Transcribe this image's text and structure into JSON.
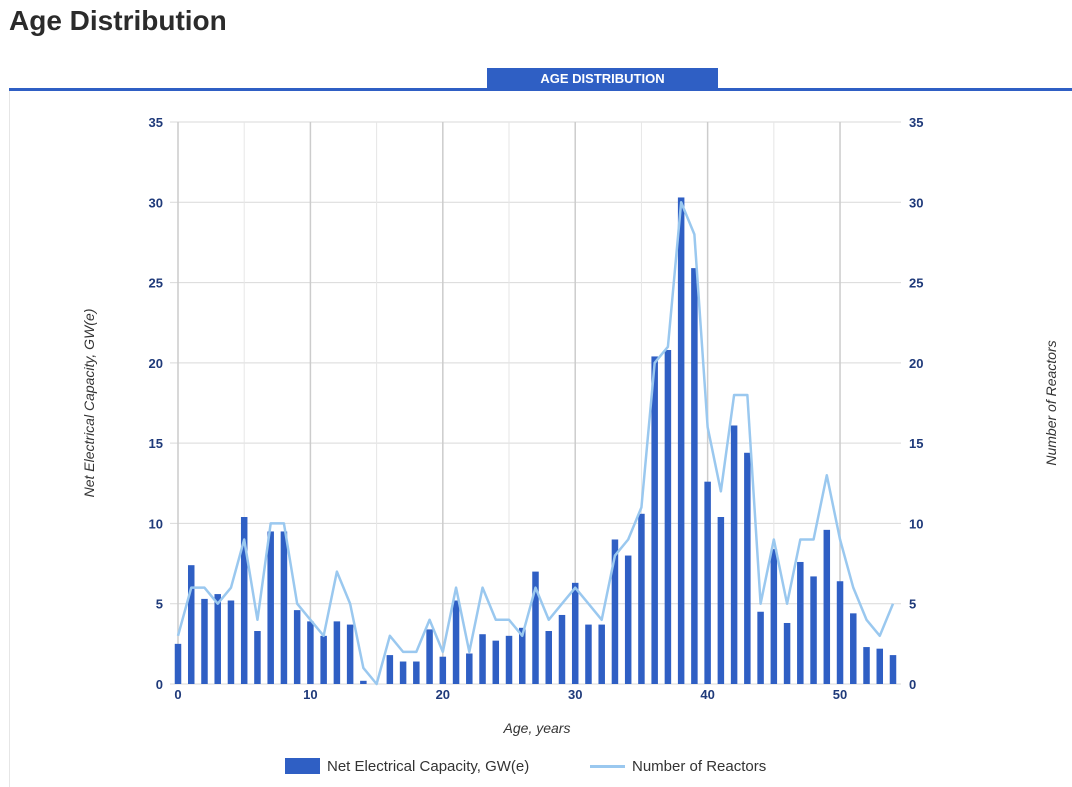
{
  "page": {
    "title": "Age Distribution",
    "tab_label": "AGE DISTRIBUTION"
  },
  "colors": {
    "bar": "#2f5fc4",
    "line": "#9ac8ef",
    "grid": "#d9d9d9",
    "tick_text": "#1f3a7a",
    "accent": "#2f5fc4"
  },
  "chart_data": {
    "type": "bar",
    "title": "",
    "xlabel": "Age, years",
    "ylabel_left": "Net Electrical Capacity, GW(e)",
    "ylabel_right": "Number of Reactors",
    "xlim": [
      0,
      54
    ],
    "ylim": [
      0,
      35
    ],
    "y_ticks": [
      0,
      5,
      10,
      15,
      20,
      25,
      30,
      35
    ],
    "x_ticks": [
      0,
      10,
      20,
      30,
      40,
      50
    ],
    "grid": true,
    "legend_position": "bottom",
    "series": [
      {
        "name": "Net Electrical Capacity, GW(e)",
        "kind": "bar",
        "axis": "left",
        "x": [
          0,
          1,
          2,
          3,
          4,
          5,
          6,
          7,
          8,
          9,
          10,
          11,
          12,
          13,
          14,
          15,
          16,
          17,
          18,
          19,
          20,
          21,
          22,
          23,
          24,
          25,
          26,
          27,
          28,
          29,
          30,
          31,
          32,
          33,
          34,
          35,
          36,
          37,
          38,
          39,
          40,
          41,
          42,
          43,
          44,
          45,
          46,
          47,
          48,
          49,
          50,
          51,
          52,
          53,
          54
        ],
        "values": [
          2.5,
          7.4,
          5.3,
          5.6,
          5.2,
          10.4,
          3.3,
          9.5,
          9.5,
          4.6,
          3.9,
          3.0,
          3.9,
          3.7,
          0.2,
          0,
          1.8,
          1.4,
          1.4,
          3.4,
          1.7,
          5.2,
          1.9,
          3.1,
          2.7,
          3.0,
          3.5,
          7.0,
          3.3,
          4.3,
          6.3,
          3.7,
          3.7,
          9.0,
          8.0,
          10.6,
          20.4,
          20.8,
          30.3,
          25.9,
          12.6,
          10.4,
          16.1,
          14.4,
          4.5,
          8.4,
          3.8,
          7.6,
          6.7,
          9.6,
          6.4,
          4.4,
          2.3,
          2.2,
          1.8
        ]
      },
      {
        "name": "Number of Reactors",
        "kind": "line",
        "axis": "right",
        "x": [
          0,
          1,
          2,
          3,
          4,
          5,
          6,
          7,
          8,
          9,
          10,
          11,
          12,
          13,
          14,
          15,
          16,
          17,
          18,
          19,
          20,
          21,
          22,
          23,
          24,
          25,
          26,
          27,
          28,
          29,
          30,
          31,
          32,
          33,
          34,
          35,
          36,
          37,
          38,
          39,
          40,
          41,
          42,
          43,
          44,
          45,
          46,
          47,
          48,
          49,
          50,
          51,
          52,
          53,
          54
        ],
        "values": [
          3,
          6,
          6,
          5,
          6,
          9,
          4,
          10,
          10,
          5,
          4,
          3,
          7,
          5,
          1,
          0,
          3,
          2,
          2,
          4,
          2,
          6,
          2,
          6,
          4,
          4,
          3,
          6,
          4,
          5,
          6,
          5,
          4,
          8,
          9,
          11,
          20,
          21,
          30,
          28,
          16,
          12,
          18,
          18,
          5,
          9,
          5,
          9,
          9,
          13,
          9,
          6,
          4,
          3,
          5
        ]
      }
    ]
  }
}
